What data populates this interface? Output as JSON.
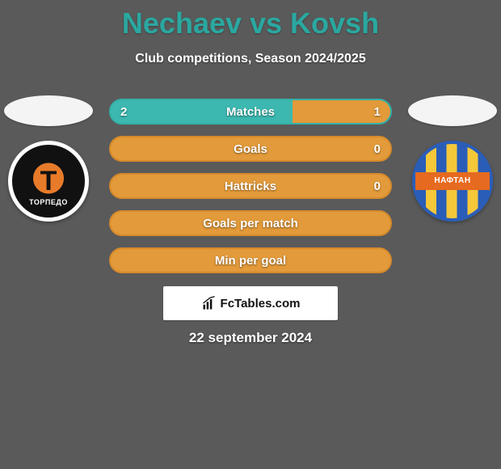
{
  "title": "Nechaev vs Kovsh",
  "subtitle": "Club competitions, Season 2024/2025",
  "date": "22 september 2024",
  "brand": "FcTables.com",
  "colors": {
    "title": "#2aa8a0",
    "text": "#ffffff",
    "background": "#5a5a5a",
    "pill_border_teal": "#34b0a8",
    "pill_fill_teal": "#3cb8b0",
    "pill_border_orange": "#d68a2a",
    "pill_fill_orange": "#e29a3a",
    "brand_bg": "#ffffff"
  },
  "left_crest": {
    "letter": "T",
    "text": "ТОРПЕДО"
  },
  "right_crest": {
    "text": "НАФТАН"
  },
  "stats": [
    {
      "label": "Matches",
      "left_val": "2",
      "right_val": "1",
      "left_pct": 12,
      "right_pct": 35,
      "left_color": "#3cb8b0",
      "right_color": "#e29a3a",
      "border": "#34b0a8",
      "track": "#3cb8b0"
    },
    {
      "label": "Goals",
      "left_val": "",
      "right_val": "0",
      "left_pct": 0,
      "right_pct": 0,
      "left_color": "#3cb8b0",
      "right_color": "#e29a3a",
      "border": "#d68a2a",
      "track": "#e29a3a"
    },
    {
      "label": "Hattricks",
      "left_val": "",
      "right_val": "0",
      "left_pct": 0,
      "right_pct": 0,
      "left_color": "#3cb8b0",
      "right_color": "#e29a3a",
      "border": "#d68a2a",
      "track": "#e29a3a"
    },
    {
      "label": "Goals per match",
      "left_val": "",
      "right_val": "",
      "left_pct": 0,
      "right_pct": 0,
      "left_color": "#3cb8b0",
      "right_color": "#e29a3a",
      "border": "#d68a2a",
      "track": "#e29a3a"
    },
    {
      "label": "Min per goal",
      "left_val": "",
      "right_val": "",
      "left_pct": 0,
      "right_pct": 0,
      "left_color": "#3cb8b0",
      "right_color": "#e29a3a",
      "border": "#d68a2a",
      "track": "#e29a3a"
    }
  ]
}
